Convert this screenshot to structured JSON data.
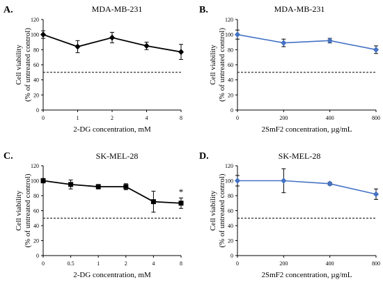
{
  "chart_data": [
    {
      "panel": "A.",
      "title": "MDA-MB-231",
      "type": "line",
      "categories": [
        "0",
        "1",
        "2",
        "4",
        "8"
      ],
      "xlabel": "2-DG concentration, mM",
      "ylabel": "Cell viability",
      "ylabel2": "(% of untreated control)",
      "ylim": [
        0,
        120
      ],
      "yticks": [
        "0",
        "20",
        "40",
        "60",
        "80",
        "100",
        "120"
      ],
      "reference_line": 50,
      "color": "#000000",
      "marker": "diamond",
      "series": [
        {
          "values": [
            100,
            84,
            96,
            85,
            77
          ],
          "errors": [
            5,
            8,
            7,
            5,
            10
          ]
        }
      ],
      "annotations": []
    },
    {
      "panel": "B.",
      "title": "MDA-MB-231",
      "type": "line",
      "categories": [
        "0",
        "200",
        "400",
        "800"
      ],
      "xlabel": "2SmF2 concentration, µg/mL",
      "ylabel": "Cell viability",
      "ylabel2": "(% of untreated control)",
      "ylim": [
        0,
        120
      ],
      "yticks": [
        "0",
        "20",
        "40",
        "60",
        "80",
        "100",
        "120"
      ],
      "reference_line": 50,
      "color": "#4472C4",
      "marker": "diamond",
      "series": [
        {
          "values": [
            100,
            89,
            92,
            80
          ],
          "errors": [
            6,
            5,
            3,
            5
          ]
        }
      ],
      "annotations": []
    },
    {
      "panel": "C.",
      "title": "SK-MEL-28",
      "type": "line",
      "categories": [
        "0",
        "0.5",
        "1",
        "2",
        "4",
        "8"
      ],
      "xlabel": "2-DG concentration, mM",
      "ylabel": "Cell viability",
      "ylabel2": "(% of untreated control)",
      "ylim": [
        0,
        120
      ],
      "yticks": [
        "0",
        "20",
        "40",
        "60",
        "80",
        "100",
        "120"
      ],
      "reference_line": 50,
      "color": "#000000",
      "marker": "square",
      "series": [
        {
          "values": [
            100,
            95,
            92,
            92,
            72,
            70
          ],
          "errors": [
            3,
            6,
            3,
            4,
            14,
            7
          ]
        }
      ],
      "annotations": [
        {
          "category_index": 5,
          "text": "*"
        }
      ]
    },
    {
      "panel": "D.",
      "title": "SK-MEL-28",
      "type": "line",
      "categories": [
        "0",
        "200",
        "400",
        "800"
      ],
      "xlabel": "2SmF2 concentration, µg/mL",
      "ylabel": "Cell viability",
      "ylabel2": "(% of untreated control)",
      "ylim": [
        0,
        120
      ],
      "yticks": [
        "0",
        "20",
        "40",
        "60",
        "80",
        "100",
        "120"
      ],
      "reference_line": 50,
      "color": "#4472C4",
      "marker": "diamond",
      "series": [
        {
          "values": [
            100,
            100,
            96,
            82
          ],
          "errors": [
            7,
            16,
            2,
            7
          ]
        }
      ],
      "annotations": []
    }
  ]
}
